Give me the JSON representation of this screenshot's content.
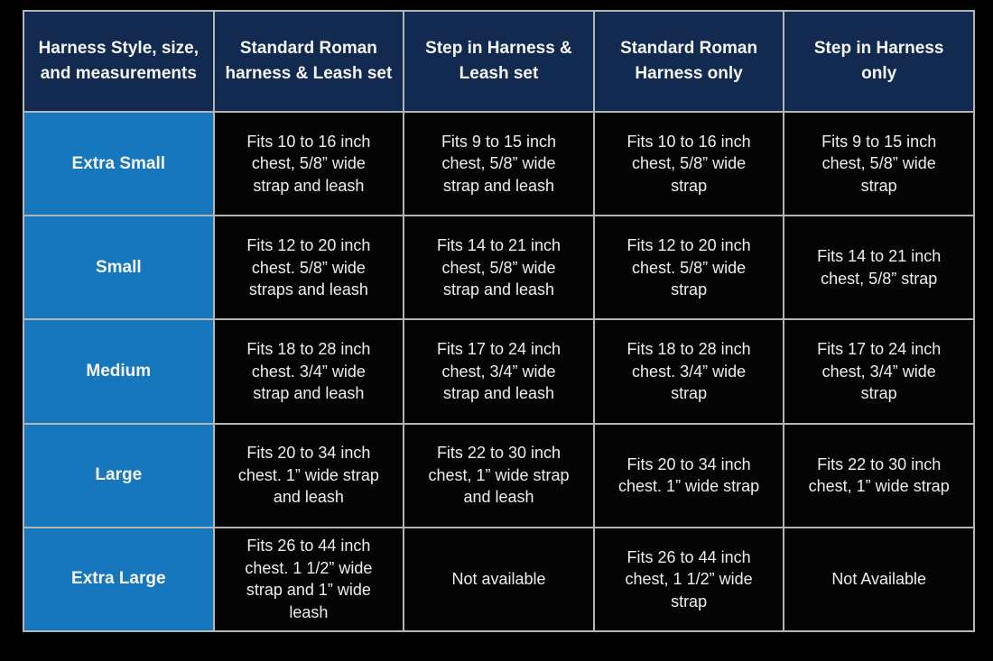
{
  "chart_data": {
    "type": "table",
    "columns": [
      "Harness Style, size,\nand measurements",
      "Standard Roman\nharness & Leash set",
      "Step in Harness &\nLeash set",
      "Standard Roman\nHarness only",
      "Step in Harness\nonly"
    ],
    "rows": [
      {
        "size": "Extra Small",
        "cells": [
          "Fits 10 to 16 inch\nchest, 5/8” wide\nstrap and leash",
          "Fits 9 to 15 inch\nchest, 5/8” wide\nstrap and leash",
          "Fits 10 to 16 inch\nchest, 5/8” wide\nstrap",
          "Fits 9 to 15 inch\nchest, 5/8” wide\nstrap"
        ]
      },
      {
        "size": "Small",
        "cells": [
          "Fits 12 to 20 inch\nchest. 5/8” wide\nstraps and leash",
          "Fits 14 to 21 inch\nchest, 5/8” wide\nstrap and leash",
          "Fits 12 to 20 inch\nchest. 5/8” wide\nstrap",
          "Fits 14 to 21 inch\nchest, 5/8” strap"
        ]
      },
      {
        "size": "Medium",
        "cells": [
          "Fits 18 to 28 inch\nchest. 3/4” wide\nstrap and leash",
          "Fits 17 to 24 inch\nchest, 3/4” wide\nstrap and leash",
          "Fits 18 to 28 inch\nchest. 3/4” wide\nstrap",
          "Fits 17 to 24 inch\nchest, 3/4” wide\nstrap"
        ]
      },
      {
        "size": "Large",
        "cells": [
          "Fits 20 to 34 inch\nchest. 1” wide strap\nand leash",
          "Fits 22 to 30 inch\nchest, 1” wide strap\nand leash",
          "Fits 20 to 34 inch\nchest. 1” wide strap",
          "Fits 22 to 30 inch\nchest, 1” wide strap"
        ]
      },
      {
        "size": "Extra Large",
        "cells": [
          "Fits 26 to 44 inch\nchest. 1 1/2” wide\nstrap and 1” wide\nleash",
          "Not available",
          "Fits 26 to 44 inch\nchest, 1 1/2” wide\nstrap",
          "Not Available"
        ]
      }
    ]
  },
  "colors": {
    "header_bg": "#122a50",
    "header_text": "#f5f5f5",
    "row_label_bg": "#1677bd",
    "row_label_text": "#f5f5f5",
    "cell_bg": "#040404",
    "cell_text": "#eeeeee",
    "grid": "#b5b5b5",
    "page_bg": "#000000"
  }
}
